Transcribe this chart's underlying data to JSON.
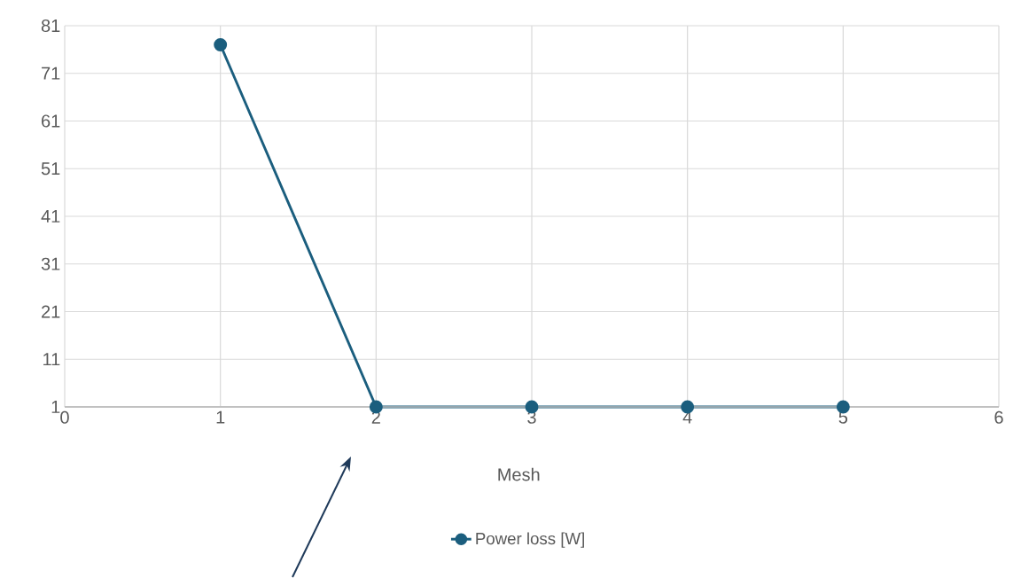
{
  "chart_data": {
    "type": "line",
    "xlabel": "Mesh",
    "x": [
      1,
      2,
      3,
      4,
      5
    ],
    "series": [
      {
        "name": "Power loss [W]",
        "color": "#1b5e7e",
        "values": [
          77,
          1,
          1,
          1,
          1
        ]
      }
    ],
    "xlim": [
      0,
      6
    ],
    "ylim": [
      1,
      81
    ],
    "xticks": [
      0,
      1,
      2,
      3,
      4,
      5,
      6
    ],
    "yticks": [
      1,
      11,
      21,
      31,
      41,
      51,
      61,
      71,
      81
    ],
    "grid": true,
    "legend": "bottom",
    "marker": "circle",
    "line_style": "solid"
  }
}
